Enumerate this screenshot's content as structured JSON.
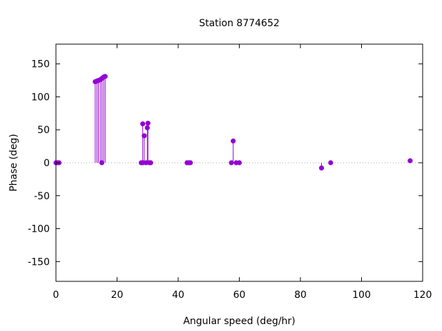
{
  "chart_data": {
    "type": "scatter",
    "style": "impulses",
    "title": "Station 8774652",
    "xlabel": "Angular speed (deg/hr)",
    "ylabel": "Phase (deg)",
    "xlim": [
      0,
      120
    ],
    "ylim": [
      -180,
      180
    ],
    "xticks": [
      0,
      20,
      40,
      60,
      80,
      100,
      120
    ],
    "yticks": [
      -150,
      -100,
      -50,
      0,
      50,
      100,
      150
    ],
    "zero_line": true,
    "grid": false,
    "color": "#9400d3",
    "points": [
      {
        "x": 0.0,
        "y": 0
      },
      {
        "x": 0.5,
        "y": 0
      },
      {
        "x": 1.0,
        "y": 0
      },
      {
        "x": 12.85,
        "y": 123
      },
      {
        "x": 13.4,
        "y": 124
      },
      {
        "x": 13.9,
        "y": 125
      },
      {
        "x": 14.5,
        "y": 126
      },
      {
        "x": 15.0,
        "y": 0
      },
      {
        "x": 15.05,
        "y": 128
      },
      {
        "x": 15.6,
        "y": 130
      },
      {
        "x": 16.1,
        "y": 131
      },
      {
        "x": 27.9,
        "y": 0
      },
      {
        "x": 28.4,
        "y": 59
      },
      {
        "x": 28.5,
        "y": 0
      },
      {
        "x": 28.9,
        "y": 41
      },
      {
        "x": 29.5,
        "y": 0
      },
      {
        "x": 29.9,
        "y": 53
      },
      {
        "x": 30.1,
        "y": 60
      },
      {
        "x": 30.6,
        "y": 0
      },
      {
        "x": 31.0,
        "y": 0
      },
      {
        "x": 42.9,
        "y": 0
      },
      {
        "x": 43.5,
        "y": 0
      },
      {
        "x": 44.0,
        "y": 0
      },
      {
        "x": 57.4,
        "y": 0
      },
      {
        "x": 58.0,
        "y": 33
      },
      {
        "x": 59.0,
        "y": 0
      },
      {
        "x": 60.0,
        "y": 0
      },
      {
        "x": 86.9,
        "y": -8
      },
      {
        "x": 89.9,
        "y": 0
      },
      {
        "x": 115.9,
        "y": 3
      }
    ]
  }
}
